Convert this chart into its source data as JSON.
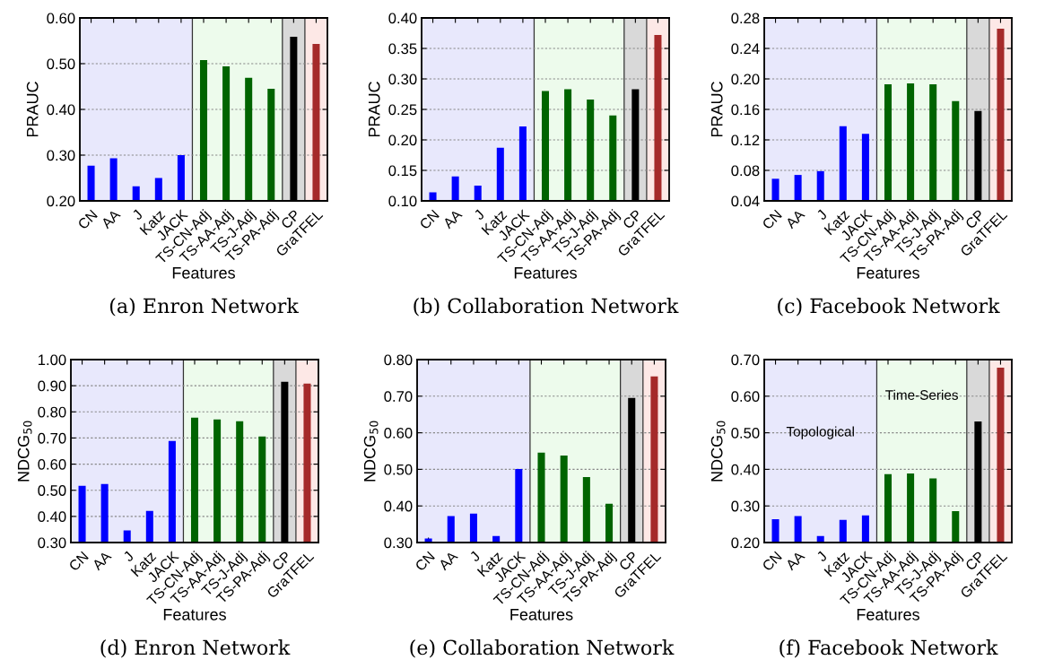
{
  "chart_data": [
    {
      "type": "bar",
      "ylabel": "PRAUC",
      "xlabel": "Features",
      "annotations": [
        "(a) Enron Network"
      ],
      "categories": [
        "CN",
        "AA",
        "J",
        "Katz",
        "JACK",
        "TS-CN-Adj",
        "TS-AA-Adj",
        "TS-J-Adj",
        "TS-PA-Adj",
        "CP",
        "GraTFEL"
      ],
      "values": [
        0.277,
        0.293,
        0.232,
        0.25,
        0.3,
        0.508,
        0.494,
        0.469,
        0.445,
        0.559,
        0.543
      ],
      "colors": [
        "#0000ff",
        "#0000ff",
        "#0000ff",
        "#0000ff",
        "#0000ff",
        "#006400",
        "#006400",
        "#006400",
        "#006400",
        "#000000",
        "#a52a2a"
      ],
      "ylim": [
        0.2,
        0.6
      ],
      "yticks": [
        {
          "value": 0.2,
          "label": "0.20"
        },
        {
          "value": 0.3,
          "label": "0.30"
        },
        {
          "value": 0.4,
          "label": "0.40"
        },
        {
          "value": 0.5,
          "label": "0.50"
        },
        {
          "value": 0.6,
          "label": "0.60"
        }
      ],
      "grid": "y",
      "bands": [
        {
          "axis": "x",
          "from": "CN",
          "to": "JACK",
          "color": "#e8e8fc"
        },
        {
          "axis": "x",
          "from": "TS-CN-Adj",
          "to": "TS-PA-Adj",
          "color": "#edfbec"
        },
        {
          "axis": "x",
          "from": "CP",
          "to": "CP",
          "color": "#d9d9d9"
        },
        {
          "axis": "x",
          "from": "GraTFEL",
          "to": "GraTFEL",
          "color": "#fde8e6"
        }
      ]
    },
    {
      "type": "bar",
      "ylabel": "PRAUC",
      "xlabel": "Features",
      "annotations": [
        "(b) Collaboration Network"
      ],
      "categories": [
        "CN",
        "AA",
        "J",
        "Katz",
        "JACK",
        "TS-CN-Adj",
        "TS-AA-Adj",
        "TS-J-Adj",
        "TS-PA-Adj",
        "CP",
        "GraTFEL"
      ],
      "values": [
        0.114,
        0.14,
        0.125,
        0.187,
        0.222,
        0.28,
        0.283,
        0.266,
        0.24,
        0.283,
        0.372
      ],
      "colors": [
        "#0000ff",
        "#0000ff",
        "#0000ff",
        "#0000ff",
        "#0000ff",
        "#006400",
        "#006400",
        "#006400",
        "#006400",
        "#000000",
        "#a52a2a"
      ],
      "ylim": [
        0.1,
        0.4
      ],
      "yticks": [
        {
          "value": 0.1,
          "label": "0.10"
        },
        0.15,
        {
          "value": 0.2,
          "label": "0.20"
        },
        0.25,
        {
          "value": 0.3,
          "label": "0.30"
        },
        0.35,
        {
          "value": 0.4,
          "label": "0.40"
        }
      ],
      "grid": "y",
      "bands": [
        {
          "axis": "x",
          "from": "CN",
          "to": "JACK",
          "color": "#e8e8fc"
        },
        {
          "axis": "x",
          "from": "TS-CN-Adj",
          "to": "TS-PA-Adj",
          "color": "#edfbec"
        },
        {
          "axis": "x",
          "from": "CP",
          "to": "CP",
          "color": "#d9d9d9"
        },
        {
          "axis": "x",
          "from": "GraTFEL",
          "to": "GraTFEL",
          "color": "#fde8e6"
        }
      ]
    },
    {
      "type": "bar",
      "ylabel": "PRAUC",
      "xlabel": "Features",
      "annotations": [
        "(c) Facebook Network"
      ],
      "categories": [
        "CN",
        "AA",
        "J",
        "Katz",
        "JACK",
        "TS-CN-Adj",
        "TS-AA-Adj",
        "TS-J-Adj",
        "TS-PA-Adj",
        "CP",
        "GraTFEL"
      ],
      "values": [
        0.069,
        0.074,
        0.079,
        0.138,
        0.128,
        0.193,
        0.194,
        0.193,
        0.171,
        0.158,
        0.266
      ],
      "colors": [
        "#0000ff",
        "#0000ff",
        "#0000ff",
        "#0000ff",
        "#0000ff",
        "#006400",
        "#006400",
        "#006400",
        "#006400",
        "#000000",
        "#a52a2a"
      ],
      "ylim": [
        0.04,
        0.28
      ],
      "yticks": [
        0.04,
        0.08,
        0.12,
        0.16,
        {
          "value": 0.2,
          "label": "0.20"
        },
        0.24,
        0.28
      ],
      "grid": "y",
      "bands": [
        {
          "axis": "x",
          "from": "CN",
          "to": "JACK",
          "color": "#e8e8fc"
        },
        {
          "axis": "x",
          "from": "TS-CN-Adj",
          "to": "TS-PA-Adj",
          "color": "#edfbec"
        },
        {
          "axis": "x",
          "from": "CP",
          "to": "CP",
          "color": "#d9d9d9"
        },
        {
          "axis": "x",
          "from": "GraTFEL",
          "to": "GraTFEL",
          "color": "#fde8e6"
        }
      ]
    },
    {
      "type": "bar",
      "ylabel": "NDCG$_{50}$",
      "xlabel": "Features",
      "annotations": [
        "(d) Enron Network"
      ],
      "categories": [
        "CN",
        "AA",
        "J",
        "Katz",
        "JACK",
        "TS-CN-Adj",
        "TS-AA-Adj",
        "TS-J-Adj",
        "TS-PA-Adj",
        "CP",
        "GraTFEL"
      ],
      "values": [
        0.517,
        0.524,
        0.346,
        0.421,
        0.689,
        0.778,
        0.771,
        0.764,
        0.706,
        0.915,
        0.908
      ],
      "colors": [
        "#0000ff",
        "#0000ff",
        "#0000ff",
        "#0000ff",
        "#0000ff",
        "#006400",
        "#006400",
        "#006400",
        "#006400",
        "#000000",
        "#a52a2a"
      ],
      "ylim": [
        0.3,
        1.0
      ],
      "yticks": [
        {
          "value": 0.3,
          "label": "0.30"
        },
        {
          "value": 0.4,
          "label": "0.40"
        },
        {
          "value": 0.5,
          "label": "0.50"
        },
        {
          "value": 0.6,
          "label": "0.60"
        },
        {
          "value": 0.7,
          "label": "0.70"
        },
        {
          "value": 0.8,
          "label": "0.80"
        },
        {
          "value": 0.9,
          "label": "0.90"
        },
        {
          "value": 1.0,
          "label": "1.00"
        }
      ],
      "grid": "y",
      "bands": [
        {
          "axis": "x",
          "from": "CN",
          "to": "JACK",
          "color": "#e8e8fc"
        },
        {
          "axis": "x",
          "from": "TS-CN-Adj",
          "to": "TS-PA-Adj",
          "color": "#edfbec"
        },
        {
          "axis": "x",
          "from": "CP",
          "to": "CP",
          "color": "#d9d9d9"
        },
        {
          "axis": "x",
          "from": "GraTFEL",
          "to": "GraTFEL",
          "color": "#fde8e6"
        }
      ]
    },
    {
      "type": "bar",
      "ylabel": "NDCG$_{50}$",
      "xlabel": "Features",
      "annotations": [
        "(e) Collaboration Network"
      ],
      "categories": [
        "CN",
        "AA",
        "J",
        "Katz",
        "JACK",
        "TS-CN-Adj",
        "TS-AA-Adj",
        "TS-J-Adj",
        "TS-PA-Adj",
        "CP",
        "GraTFEL"
      ],
      "values": [
        0.311,
        0.372,
        0.379,
        0.318,
        0.501,
        0.546,
        0.538,
        0.479,
        0.406,
        0.695,
        0.754
      ],
      "colors": [
        "#0000ff",
        "#0000ff",
        "#0000ff",
        "#0000ff",
        "#0000ff",
        "#006400",
        "#006400",
        "#006400",
        "#006400",
        "#000000",
        "#a52a2a"
      ],
      "ylim": [
        0.3,
        0.8
      ],
      "yticks": [
        {
          "value": 0.3,
          "label": "0.30"
        },
        {
          "value": 0.4,
          "label": "0.40"
        },
        {
          "value": 0.5,
          "label": "0.50"
        },
        {
          "value": 0.6,
          "label": "0.60"
        },
        {
          "value": 0.7,
          "label": "0.70"
        },
        {
          "value": 0.8,
          "label": "0.80"
        }
      ],
      "grid": "y",
      "bands": [
        {
          "axis": "x",
          "from": "CN",
          "to": "JACK",
          "color": "#e8e8fc"
        },
        {
          "axis": "x",
          "from": "TS-CN-Adj",
          "to": "TS-PA-Adj",
          "color": "#edfbec"
        },
        {
          "axis": "x",
          "from": "CP",
          "to": "CP",
          "color": "#d9d9d9"
        },
        {
          "axis": "x",
          "from": "GraTFEL",
          "to": "GraTFEL",
          "color": "#fde8e6"
        }
      ]
    },
    {
      "type": "bar",
      "ylabel": "NDCG$_{50}$",
      "xlabel": "Features",
      "annotations": [
        "(f) Facebook Network"
      ],
      "categories": [
        "CN",
        "AA",
        "J",
        "Katz",
        "JACK",
        "TS-CN-Adj",
        "TS-AA-Adj",
        "TS-J-Adj",
        "TS-PA-Adj",
        "CP",
        "GraTFEL"
      ],
      "values": [
        0.264,
        0.272,
        0.218,
        0.262,
        0.274,
        0.387,
        0.389,
        0.375,
        0.286,
        0.531,
        0.678
      ],
      "colors": [
        "#0000ff",
        "#0000ff",
        "#0000ff",
        "#0000ff",
        "#0000ff",
        "#006400",
        "#006400",
        "#006400",
        "#006400",
        "#000000",
        "#a52a2a"
      ],
      "ylim": [
        0.2,
        0.7
      ],
      "yticks": [
        {
          "value": 0.2,
          "label": "0.20"
        },
        {
          "value": 0.3,
          "label": "0.30"
        },
        {
          "value": 0.4,
          "label": "0.40"
        },
        {
          "value": 0.5,
          "label": "0.50"
        },
        {
          "value": 0.6,
          "label": "0.60"
        },
        {
          "value": 0.7,
          "label": "0.70"
        }
      ],
      "grid": "y",
      "bands": [
        {
          "axis": "x",
          "from": "CN",
          "to": "JACK",
          "color": "#e8e8fc",
          "label": "Topological"
        },
        {
          "axis": "x",
          "from": "TS-CN-Adj",
          "to": "TS-PA-Adj",
          "color": "#edfbec",
          "label": "Time-Series"
        },
        {
          "axis": "x",
          "from": "CP",
          "to": "CP",
          "color": "#d9d9d9"
        },
        {
          "axis": "x",
          "from": "GraTFEL",
          "to": "GraTFEL",
          "color": "#fde8e6"
        }
      ]
    }
  ]
}
